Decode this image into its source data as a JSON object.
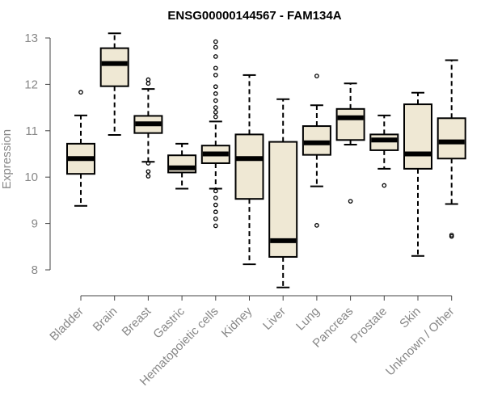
{
  "chart_data": {
    "type": "boxplot",
    "title": "ENSG00000144567 - FAM134A",
    "ylabel": "Expression",
    "xlabel": "",
    "ylim": [
      7.7,
      13.2
    ],
    "yticks": [
      8,
      9,
      10,
      11,
      12,
      13
    ],
    "categories": [
      "Bladder",
      "Brain",
      "Breast",
      "Gastric",
      "Hematopoietic cells",
      "Kidney",
      "Liver",
      "Lung",
      "Pancreas",
      "Prostate",
      "Skin",
      "Unknown / Other"
    ],
    "boxes": [
      {
        "category": "Bladder",
        "min": 9.38,
        "q1": 10.07,
        "median": 10.4,
        "q3": 10.72,
        "max": 11.33,
        "outliers": [
          11.83
        ]
      },
      {
        "category": "Brain",
        "min": 10.91,
        "q1": 11.96,
        "median": 12.45,
        "q3": 12.78,
        "max": 13.1,
        "outliers": []
      },
      {
        "category": "Breast",
        "min": 10.33,
        "q1": 10.95,
        "median": 11.15,
        "q3": 11.32,
        "max": 11.9,
        "outliers": [
          12.1,
          12.02,
          10.3,
          10.12,
          10.02
        ]
      },
      {
        "category": "Gastric",
        "min": 9.75,
        "q1": 10.1,
        "median": 10.2,
        "q3": 10.47,
        "max": 10.72,
        "outliers": []
      },
      {
        "category": "Hematopoietic cells",
        "min": 9.75,
        "q1": 10.3,
        "median": 10.5,
        "q3": 10.68,
        "max": 11.2,
        "outliers": [
          12.92,
          12.8,
          12.6,
          12.35,
          12.2,
          11.95,
          11.8,
          11.65,
          11.5,
          11.4,
          11.3,
          9.7,
          9.55,
          9.4,
          9.25,
          9.1,
          8.95
        ]
      },
      {
        "category": "Kidney",
        "min": 8.12,
        "q1": 9.53,
        "median": 10.4,
        "q3": 10.92,
        "max": 12.2,
        "outliers": []
      },
      {
        "category": "Liver",
        "min": 7.62,
        "q1": 8.28,
        "median": 8.63,
        "q3": 10.76,
        "max": 11.68,
        "outliers": []
      },
      {
        "category": "Lung",
        "min": 9.8,
        "q1": 10.48,
        "median": 10.74,
        "q3": 11.1,
        "max": 11.55,
        "outliers": [
          12.18,
          8.96
        ]
      },
      {
        "category": "Pancreas",
        "min": 10.7,
        "q1": 10.8,
        "median": 11.28,
        "q3": 11.47,
        "max": 12.02,
        "outliers": [
          9.48
        ]
      },
      {
        "category": "Prostate",
        "min": 10.18,
        "q1": 10.58,
        "median": 10.8,
        "q3": 10.92,
        "max": 11.33,
        "outliers": [
          9.82
        ]
      },
      {
        "category": "Skin",
        "min": 8.3,
        "q1": 10.18,
        "median": 10.5,
        "q3": 11.57,
        "max": 11.82,
        "outliers": []
      },
      {
        "category": "Unknown / Other",
        "min": 9.42,
        "q1": 10.4,
        "median": 10.76,
        "q3": 11.27,
        "max": 12.52,
        "outliers": [
          8.75,
          8.72
        ]
      }
    ],
    "colors": {
      "box_fill": "#efe8d4",
      "box_stroke": "#000000",
      "axis_text": "#888888"
    },
    "grid": false,
    "legend": "none"
  }
}
